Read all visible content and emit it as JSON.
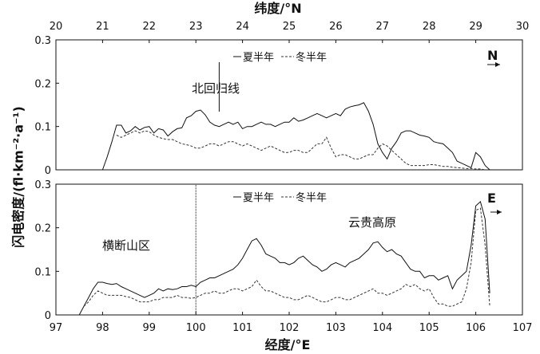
{
  "y_axis_label": "闪电密度/(fl·km⁻²·a⁻¹)",
  "colors": {
    "summer_line": "#111111",
    "winter_line": "#333333",
    "axis": "#111111"
  },
  "chart_data": [
    {
      "type": "line",
      "panel": "top",
      "xlabel": "纬度/°N",
      "x_ticks": [
        "20",
        "21",
        "22",
        "23",
        "24",
        "25",
        "26",
        "27",
        "28",
        "29",
        "30"
      ],
      "xlim": [
        20,
        30
      ],
      "y_ticks": [
        "0",
        "0.1",
        "0.2",
        "0.3"
      ],
      "ylim": [
        0,
        0.3
      ],
      "direction_label": "N",
      "annotation": {
        "text": "北回归线",
        "x": 23.5
      },
      "legend": {
        "summer": "夏半年",
        "winter": "冬半年",
        "position": "top-center"
      },
      "series": [
        {
          "name": "夏半年",
          "style": "solid",
          "x": [
            21.0,
            21.1,
            21.2,
            21.3,
            21.4,
            21.5,
            21.6,
            21.7,
            21.8,
            21.9,
            22.0,
            22.1,
            22.2,
            22.3,
            22.4,
            22.5,
            22.6,
            22.7,
            22.8,
            22.9,
            23.0,
            23.1,
            23.2,
            23.3,
            23.4,
            23.5,
            23.6,
            23.7,
            23.8,
            23.9,
            24.0,
            24.1,
            24.2,
            24.3,
            24.4,
            24.5,
            24.6,
            24.7,
            24.8,
            24.9,
            25.0,
            25.1,
            25.2,
            25.3,
            25.4,
            25.5,
            25.6,
            25.7,
            25.8,
            25.9,
            26.0,
            26.1,
            26.2,
            26.3,
            26.4,
            26.5,
            26.6,
            26.7,
            26.8,
            26.9,
            27.0,
            27.1,
            27.2,
            27.3,
            27.4,
            27.5,
            27.6,
            27.7,
            27.8,
            27.9,
            28.0,
            28.1,
            28.2,
            28.3,
            28.4,
            28.5,
            28.6,
            28.7,
            28.8,
            28.9,
            29.0,
            29.1,
            29.2,
            29.3
          ],
          "y": [
            0.0,
            0.03,
            0.065,
            0.103,
            0.103,
            0.085,
            0.09,
            0.1,
            0.092,
            0.098,
            0.1,
            0.085,
            0.095,
            0.092,
            0.078,
            0.088,
            0.095,
            0.097,
            0.12,
            0.125,
            0.135,
            0.138,
            0.127,
            0.11,
            0.103,
            0.1,
            0.105,
            0.11,
            0.105,
            0.11,
            0.095,
            0.1,
            0.1,
            0.105,
            0.11,
            0.105,
            0.105,
            0.1,
            0.105,
            0.11,
            0.11,
            0.12,
            0.112,
            0.115,
            0.12,
            0.125,
            0.13,
            0.125,
            0.12,
            0.125,
            0.13,
            0.125,
            0.14,
            0.145,
            0.148,
            0.15,
            0.155,
            0.135,
            0.105,
            0.06,
            0.04,
            0.025,
            0.05,
            0.065,
            0.085,
            0.09,
            0.09,
            0.085,
            0.08,
            0.078,
            0.075,
            0.065,
            0.062,
            0.06,
            0.05,
            0.04,
            0.02,
            0.015,
            0.01,
            0.005,
            0.04,
            0.03,
            0.01,
            0.0
          ]
        },
        {
          "name": "冬半年",
          "style": "dashed",
          "x": [
            21.3,
            21.4,
            21.5,
            21.6,
            21.7,
            21.8,
            21.9,
            22.0,
            22.1,
            22.2,
            22.3,
            22.4,
            22.5,
            22.6,
            22.7,
            22.8,
            22.9,
            23.0,
            23.1,
            23.2,
            23.3,
            23.4,
            23.5,
            23.6,
            23.7,
            23.8,
            23.9,
            24.0,
            24.1,
            24.2,
            24.3,
            24.4,
            24.5,
            24.6,
            24.7,
            24.8,
            24.9,
            25.0,
            25.1,
            25.2,
            25.3,
            25.4,
            25.5,
            25.6,
            25.7,
            25.8,
            25.9,
            26.0,
            26.1,
            26.2,
            26.3,
            26.4,
            26.5,
            26.6,
            26.7,
            26.8,
            26.9,
            27.0,
            27.1,
            27.2,
            27.3,
            27.4,
            27.5,
            27.6,
            27.7,
            27.8,
            27.9,
            28.0,
            28.1,
            28.2,
            28.3,
            28.4,
            28.5,
            28.6,
            28.7,
            28.8,
            28.9,
            29.0,
            29.1,
            29.2
          ],
          "y": [
            0.08,
            0.075,
            0.08,
            0.085,
            0.09,
            0.085,
            0.09,
            0.088,
            0.08,
            0.075,
            0.072,
            0.07,
            0.07,
            0.065,
            0.06,
            0.058,
            0.055,
            0.05,
            0.05,
            0.055,
            0.06,
            0.06,
            0.055,
            0.06,
            0.065,
            0.065,
            0.06,
            0.055,
            0.06,
            0.055,
            0.05,
            0.045,
            0.05,
            0.055,
            0.05,
            0.045,
            0.04,
            0.04,
            0.045,
            0.045,
            0.04,
            0.04,
            0.05,
            0.06,
            0.06,
            0.075,
            0.05,
            0.03,
            0.035,
            0.035,
            0.03,
            0.025,
            0.025,
            0.03,
            0.035,
            0.035,
            0.05,
            0.06,
            0.055,
            0.045,
            0.035,
            0.025,
            0.015,
            0.01,
            0.01,
            0.01,
            0.01,
            0.012,
            0.012,
            0.01,
            0.008,
            0.008,
            0.006,
            0.005,
            0.004,
            0.003,
            0.003,
            0.002,
            0.002,
            0.0
          ]
        }
      ]
    },
    {
      "type": "line",
      "panel": "bottom",
      "xlabel": "经度/°E",
      "x_ticks": [
        "97",
        "98",
        "99",
        "100",
        "101",
        "102",
        "103",
        "104",
        "105",
        "106",
        "107"
      ],
      "xlim": [
        97,
        107
      ],
      "y_ticks": [
        "0",
        "0.1",
        "0.2",
        "0.3"
      ],
      "ylim": [
        0,
        0.3
      ],
      "direction_label": "E",
      "annotations": [
        {
          "text": "横断山区"
        },
        {
          "text": "云贵高原"
        }
      ],
      "reference_line_x": 100.0,
      "legend": {
        "summer": "夏半年",
        "winter": "冬半年",
        "position": "top-center"
      },
      "series": [
        {
          "name": "夏半年",
          "style": "solid",
          "x": [
            97.5,
            97.6,
            97.7,
            97.8,
            97.9,
            98.0,
            98.1,
            98.2,
            98.3,
            98.4,
            98.5,
            98.6,
            98.7,
            98.8,
            98.9,
            99.0,
            99.1,
            99.2,
            99.3,
            99.4,
            99.5,
            99.6,
            99.7,
            99.8,
            99.9,
            100.0,
            100.1,
            100.2,
            100.3,
            100.4,
            100.5,
            100.6,
            100.7,
            100.8,
            100.9,
            101.0,
            101.1,
            101.2,
            101.3,
            101.4,
            101.5,
            101.6,
            101.7,
            101.8,
            101.9,
            102.0,
            102.1,
            102.2,
            102.3,
            102.4,
            102.5,
            102.6,
            102.7,
            102.8,
            102.9,
            103.0,
            103.1,
            103.2,
            103.3,
            103.4,
            103.5,
            103.6,
            103.7,
            103.8,
            103.9,
            104.0,
            104.1,
            104.2,
            104.3,
            104.4,
            104.5,
            104.6,
            104.7,
            104.8,
            104.9,
            105.0,
            105.1,
            105.2,
            105.3,
            105.4,
            105.5,
            105.6,
            105.7,
            105.8,
            105.9,
            106.0,
            106.1,
            106.2,
            106.3
          ],
          "y": [
            0.0,
            0.02,
            0.04,
            0.06,
            0.075,
            0.075,
            0.072,
            0.07,
            0.072,
            0.065,
            0.06,
            0.055,
            0.05,
            0.045,
            0.04,
            0.045,
            0.05,
            0.06,
            0.055,
            0.06,
            0.058,
            0.06,
            0.065,
            0.065,
            0.068,
            0.065,
            0.075,
            0.08,
            0.085,
            0.085,
            0.09,
            0.095,
            0.1,
            0.105,
            0.115,
            0.13,
            0.15,
            0.17,
            0.175,
            0.16,
            0.14,
            0.135,
            0.13,
            0.12,
            0.12,
            0.115,
            0.12,
            0.13,
            0.135,
            0.125,
            0.115,
            0.11,
            0.1,
            0.105,
            0.115,
            0.12,
            0.115,
            0.11,
            0.12,
            0.125,
            0.13,
            0.14,
            0.15,
            0.165,
            0.168,
            0.155,
            0.145,
            0.15,
            0.14,
            0.135,
            0.12,
            0.105,
            0.1,
            0.1,
            0.085,
            0.09,
            0.09,
            0.08,
            0.085,
            0.09,
            0.06,
            0.08,
            0.09,
            0.1,
            0.16,
            0.25,
            0.26,
            0.22,
            0.05
          ]
        },
        {
          "name": "冬半年",
          "style": "dashed",
          "x": [
            97.6,
            97.7,
            97.8,
            97.9,
            98.0,
            98.1,
            98.2,
            98.3,
            98.4,
            98.5,
            98.6,
            98.7,
            98.8,
            98.9,
            99.0,
            99.1,
            99.2,
            99.3,
            99.4,
            99.5,
            99.6,
            99.7,
            99.8,
            99.9,
            100.0,
            100.1,
            100.2,
            100.3,
            100.4,
            100.5,
            100.6,
            100.7,
            100.8,
            100.9,
            101.0,
            101.1,
            101.2,
            101.3,
            101.4,
            101.5,
            101.6,
            101.7,
            101.8,
            101.9,
            102.0,
            102.1,
            102.2,
            102.3,
            102.4,
            102.5,
            102.6,
            102.7,
            102.8,
            102.9,
            103.0,
            103.1,
            103.2,
            103.3,
            103.4,
            103.5,
            103.6,
            103.7,
            103.8,
            103.9,
            104.0,
            104.1,
            104.2,
            104.3,
            104.4,
            104.5,
            104.6,
            104.7,
            104.8,
            104.9,
            105.0,
            105.1,
            105.2,
            105.3,
            105.4,
            105.5,
            105.6,
            105.7,
            105.8,
            105.9,
            106.0,
            106.1,
            106.2,
            106.3
          ],
          "y": [
            0.02,
            0.03,
            0.045,
            0.055,
            0.05,
            0.045,
            0.045,
            0.045,
            0.045,
            0.042,
            0.04,
            0.035,
            0.03,
            0.03,
            0.03,
            0.035,
            0.035,
            0.04,
            0.04,
            0.04,
            0.045,
            0.04,
            0.04,
            0.038,
            0.04,
            0.045,
            0.05,
            0.05,
            0.055,
            0.05,
            0.05,
            0.055,
            0.06,
            0.06,
            0.055,
            0.06,
            0.065,
            0.08,
            0.065,
            0.055,
            0.055,
            0.05,
            0.045,
            0.04,
            0.04,
            0.035,
            0.035,
            0.04,
            0.045,
            0.04,
            0.035,
            0.03,
            0.03,
            0.035,
            0.04,
            0.04,
            0.035,
            0.035,
            0.04,
            0.045,
            0.05,
            0.055,
            0.06,
            0.05,
            0.05,
            0.045,
            0.05,
            0.055,
            0.06,
            0.07,
            0.065,
            0.07,
            0.06,
            0.055,
            0.06,
            0.04,
            0.025,
            0.025,
            0.02,
            0.02,
            0.025,
            0.03,
            0.06,
            0.12,
            0.24,
            0.245,
            0.16,
            0.02
          ]
        }
      ]
    }
  ]
}
